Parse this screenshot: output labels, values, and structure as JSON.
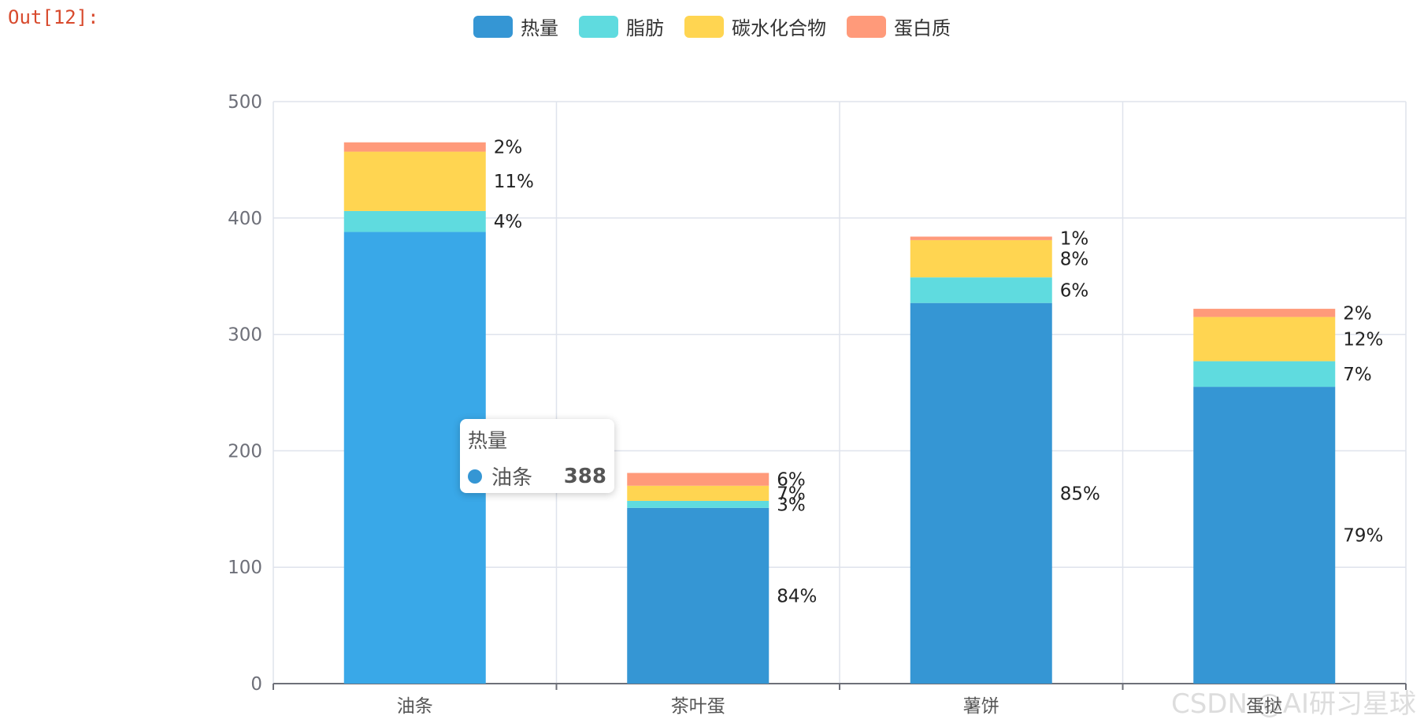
{
  "cell": {
    "out_label": "Out[12]:"
  },
  "legend": [
    {
      "name": "热量",
      "color": "#3596d4"
    },
    {
      "name": "脂肪",
      "color": "#5fdbdf"
    },
    {
      "name": "碳水化合物",
      "color": "#ffd551"
    },
    {
      "name": "蛋白质",
      "color": "#ff9a7a"
    }
  ],
  "tooltip": {
    "title": "热量",
    "category": "油条",
    "value": "388",
    "color": "#3596d4"
  },
  "watermark": "CSDN @AI研习星球",
  "chart_data": {
    "type": "bar",
    "stacked": true,
    "categories": [
      "油条",
      "茶叶蛋",
      "薯饼",
      "蛋挞"
    ],
    "ylim": [
      0,
      500
    ],
    "yticks": [
      0,
      100,
      200,
      300,
      400,
      500
    ],
    "grid": true,
    "legend_position": "top",
    "series": [
      {
        "name": "热量",
        "color": "#3596d4",
        "values": [
          388,
          151,
          327,
          255
        ],
        "labels": [
          "",
          "84%",
          "85%",
          "79%"
        ]
      },
      {
        "name": "脂肪",
        "color": "#5fdbdf",
        "values": [
          18,
          6,
          22,
          22
        ],
        "labels": [
          "4%",
          "3%",
          "6%",
          "7%"
        ]
      },
      {
        "name": "碳水化合物",
        "color": "#ffd551",
        "values": [
          51,
          13,
          32,
          38
        ],
        "labels": [
          "11%",
          "7%",
          "8%",
          "12%"
        ]
      },
      {
        "name": "蛋白质",
        "color": "#ff9a7a",
        "values": [
          8,
          11,
          3,
          7
        ],
        "labels": [
          "2%",
          "6%",
          "1%",
          "2%"
        ]
      }
    ],
    "highlight": {
      "series": 0,
      "category": 0,
      "color": "#39a8e8"
    }
  }
}
